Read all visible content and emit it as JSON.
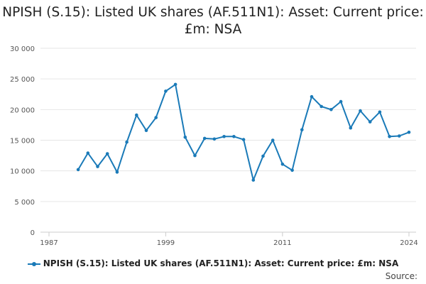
{
  "chart_data": {
    "type": "line",
    "title": "NPISH (S.15): Listed UK shares (AF.511N1): Asset: Current price: £m: NSA",
    "xlabel": "",
    "ylabel": "",
    "ylim": [
      0,
      30000
    ],
    "xlim": [
      1987,
      2024
    ],
    "y_ticks": [
      0,
      5000,
      10000,
      15000,
      20000,
      25000,
      30000
    ],
    "y_tick_labels": [
      "0",
      "5 000",
      "10 000",
      "15 000",
      "20 000",
      "25 000",
      "30 000"
    ],
    "x_ticks": [
      1987,
      1999,
      2011,
      2024
    ],
    "x_tick_labels": [
      "1987",
      "1999",
      "2011",
      "2024"
    ],
    "grid": true,
    "legend_position": "bottom",
    "series": [
      {
        "name": "NPISH (S.15): Listed UK shares (AF.511N1): Asset: Current price: £m: NSA",
        "color": "#1a7ab8",
        "points": [
          [
            1990,
            10200
          ],
          [
            1991,
            12900
          ],
          [
            1992,
            10700
          ],
          [
            1993,
            12800
          ],
          [
            1994,
            9800
          ],
          [
            1995,
            14700
          ],
          [
            1996,
            19100
          ],
          [
            1997,
            16600
          ],
          [
            1998,
            18700
          ],
          [
            1999,
            23000
          ],
          [
            2000,
            24100
          ],
          [
            2001,
            15500
          ],
          [
            2002,
            12500
          ],
          [
            2003,
            15300
          ],
          [
            2004,
            15200
          ],
          [
            2005,
            15600
          ],
          [
            2006,
            15600
          ],
          [
            2007,
            15100
          ],
          [
            2008,
            8500
          ],
          [
            2009,
            12400
          ],
          [
            2010,
            15000
          ],
          [
            2011,
            11100
          ],
          [
            2012,
            10100
          ],
          [
            2013,
            16700
          ],
          [
            2014,
            22100
          ],
          [
            2015,
            20500
          ],
          [
            2016,
            20000
          ],
          [
            2017,
            21300
          ],
          [
            2018,
            17000
          ],
          [
            2019,
            19800
          ],
          [
            2020,
            18000
          ],
          [
            2021,
            19600
          ],
          [
            2022,
            15600
          ],
          [
            2023,
            15700
          ],
          [
            2024,
            16300
          ]
        ]
      }
    ],
    "source_label": "Source:"
  }
}
